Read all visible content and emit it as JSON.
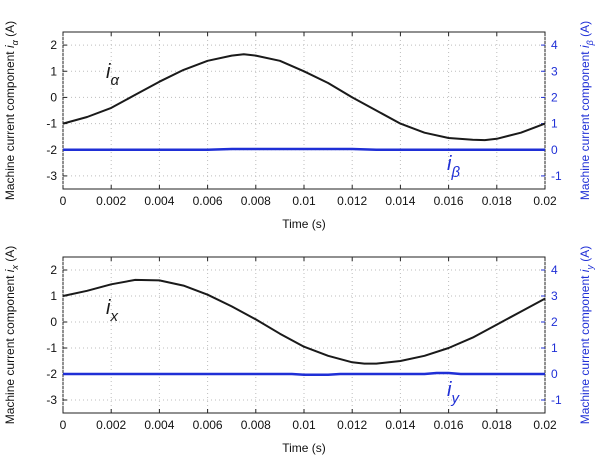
{
  "colors": {
    "primary_series": "#1a1a1a",
    "secondary_series": "#1f2fd6",
    "grid": "#bdbdbd",
    "axis": "#222222"
  },
  "chart_data": [
    {
      "type": "line",
      "xlabel": "Time (s)",
      "xlim": [
        0,
        0.02
      ],
      "xticks": [
        "0",
        "0.002",
        "0.004",
        "0.006",
        "0.008",
        "0.01",
        "0.012",
        "0.014",
        "0.016",
        "0.018",
        "0.02"
      ],
      "ylabel_left": {
        "main": "Machine current component ",
        "sym": "i",
        "sub": "α",
        "unit": " (A)"
      },
      "ylabel_right": {
        "main": "Machine current component ",
        "sym": "i",
        "sub": "β",
        "unit": " (A)"
      },
      "ylim_left": [
        -3.5,
        2.5
      ],
      "ylim_right": [
        -1.5,
        4.5
      ],
      "yticks_left": [
        "2",
        "1",
        "0",
        "-1",
        "-2",
        "-3"
      ],
      "yticks_right": [
        "4",
        "3",
        "2",
        "1",
        "0",
        "-1"
      ],
      "grid": true,
      "series": [
        {
          "axis": "left",
          "color": "#1a1a1a",
          "annotation": {
            "sym": "i",
            "sub": "α"
          },
          "x": [
            0,
            0.001,
            0.002,
            0.003,
            0.004,
            0.005,
            0.006,
            0.007,
            0.0075,
            0.008,
            0.009,
            0.01,
            0.011,
            0.012,
            0.013,
            0.014,
            0.015,
            0.016,
            0.017,
            0.0175,
            0.018,
            0.019,
            0.02
          ],
          "values": [
            -1.0,
            -0.75,
            -0.4,
            0.1,
            0.6,
            1.05,
            1.4,
            1.6,
            1.65,
            1.6,
            1.4,
            1.0,
            0.55,
            0.0,
            -0.5,
            -1.0,
            -1.35,
            -1.55,
            -1.62,
            -1.63,
            -1.58,
            -1.35,
            -1.0
          ]
        },
        {
          "axis": "right",
          "color": "#1f2fd6",
          "annotation": {
            "sym": "i",
            "sub": "β"
          },
          "x": [
            0,
            0.006,
            0.007,
            0.012,
            0.013,
            0.02
          ],
          "values": [
            0.0,
            0.0,
            0.03,
            0.03,
            0.0,
            0.0
          ]
        }
      ]
    },
    {
      "type": "line",
      "xlabel": "Time (s)",
      "xlim": [
        0,
        0.02
      ],
      "xticks": [
        "0",
        "0.002",
        "0.004",
        "0.006",
        "0.008",
        "0.01",
        "0.012",
        "0.014",
        "0.016",
        "0.018",
        "0.02"
      ],
      "ylabel_left": {
        "main": "Machine current component ",
        "sym": "i",
        "sub": "x",
        "unit": " (A)"
      },
      "ylabel_right": {
        "main": "Machine current component ",
        "sym": "i",
        "sub": "y",
        "unit": " (A)"
      },
      "ylim_left": [
        -3.5,
        2.5
      ],
      "ylim_right": [
        -1.5,
        4.5
      ],
      "yticks_left": [
        "2",
        "1",
        "0",
        "-1",
        "-2",
        "-3"
      ],
      "yticks_right": [
        "4",
        "3",
        "2",
        "1",
        "0",
        "-1"
      ],
      "grid": true,
      "series": [
        {
          "axis": "left",
          "color": "#1a1a1a",
          "annotation": {
            "sym": "i",
            "sub": "x"
          },
          "x": [
            0,
            0.001,
            0.002,
            0.003,
            0.004,
            0.005,
            0.006,
            0.007,
            0.008,
            0.009,
            0.01,
            0.011,
            0.012,
            0.0125,
            0.013,
            0.014,
            0.015,
            0.016,
            0.017,
            0.018,
            0.019,
            0.02
          ],
          "values": [
            1.0,
            1.2,
            1.45,
            1.62,
            1.6,
            1.4,
            1.05,
            0.6,
            0.1,
            -0.45,
            -0.95,
            -1.3,
            -1.55,
            -1.6,
            -1.6,
            -1.5,
            -1.3,
            -1.0,
            -0.6,
            -0.1,
            0.4,
            0.9
          ]
        },
        {
          "axis": "right",
          "color": "#1f2fd6",
          "annotation": {
            "sym": "i",
            "sub": "y"
          },
          "x": [
            0,
            0.0095,
            0.01,
            0.011,
            0.0115,
            0.015,
            0.0155,
            0.016,
            0.0165,
            0.02
          ],
          "values": [
            0.0,
            0.0,
            -0.03,
            -0.03,
            0.0,
            0.0,
            0.04,
            0.04,
            0.0,
            0.0
          ]
        }
      ]
    }
  ]
}
